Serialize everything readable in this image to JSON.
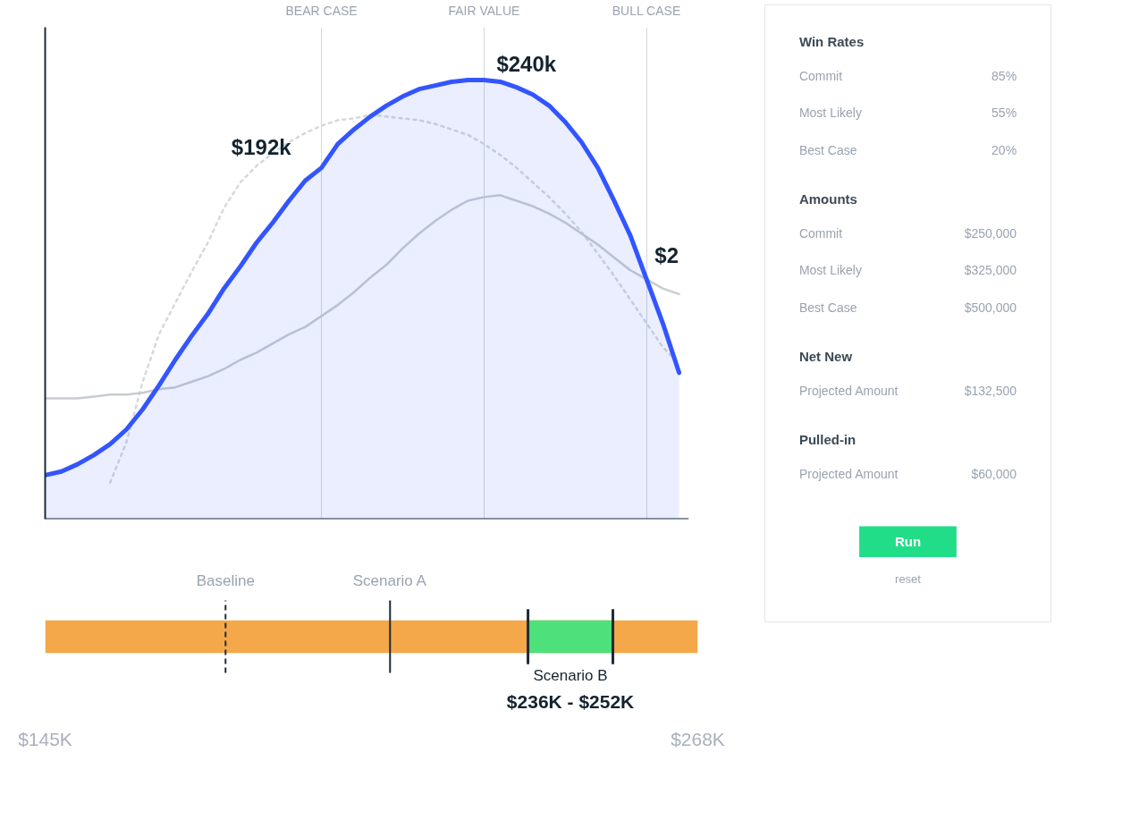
{
  "chart_data": [
    {
      "type": "line",
      "grid": "x",
      "tick_labels": "x",
      "categories": [
        null,
        null,
        null,
        null,
        null,
        null,
        null,
        null,
        null,
        null,
        null,
        null,
        null,
        null,
        null,
        null,
        null,
        "BEAR CASE",
        null,
        null,
        null,
        null,
        null,
        null,
        null,
        null,
        null,
        "FAIR VALUE",
        null,
        null,
        null,
        null,
        null,
        null,
        null,
        null,
        null,
        "BULL CASE",
        null,
        null
      ],
      "series": [
        {
          "type": "area",
          "color": "#3355ff",
          "values": [
            24,
            26,
            30,
            35,
            41,
            49,
            60,
            73,
            87,
            100,
            112,
            126,
            138,
            151,
            162,
            174,
            185,
            192,
            205,
            213,
            220,
            226,
            231,
            235,
            237,
            239,
            240,
            240,
            239,
            236,
            232,
            226,
            217,
            206,
            192,
            174,
            155,
            131,
            107,
            80
          ],
          "value_labels": [
            null,
            null,
            null,
            null,
            null,
            null,
            null,
            null,
            null,
            null,
            null,
            null,
            null,
            null,
            null,
            null,
            null,
            "$192k",
            null,
            null,
            null,
            null,
            null,
            null,
            null,
            null,
            null,
            "$240k",
            null,
            null,
            null,
            null,
            null,
            null,
            null,
            null,
            null,
            null,
            null,
            null
          ]
        },
        {
          "color": "#c8ccd2",
          "values": [
            66,
            66,
            66,
            67,
            68,
            68,
            69,
            71,
            72,
            75,
            78,
            82,
            87,
            91,
            96,
            101,
            105,
            111,
            117,
            124,
            132,
            139,
            148,
            156,
            163,
            169,
            174,
            176,
            177,
            174,
            171,
            167,
            162,
            156,
            150,
            143,
            136,
            131,
            126,
            123
          ]
        },
        {
          "color": "#d6d8dc",
          "line_style": "dotted",
          "values": [
            null,
            null,
            null,
            null,
            20,
            42,
            75,
            101,
            118,
            135,
            151,
            170,
            184,
            193,
            200,
            206,
            211,
            215,
            218,
            219,
            221,
            220,
            219,
            218,
            216,
            213,
            210,
            205,
            199,
            192,
            184,
            176,
            167,
            157,
            145,
            133,
            120,
            107,
            94,
            85
          ]
        }
      ],
      "annotations": [
        "$2"
      ]
    },
    {
      "type": "bar",
      "orientation": "horizontal",
      "categories": [
        null
      ],
      "values": [
        123
      ],
      "base": [
        145
      ],
      "color": "#f4a84a",
      "xlim": [
        145,
        268
      ],
      "xticks": [
        {
          "value": 145,
          "label": "$145K"
        },
        {
          "value": 268,
          "label": "$268K"
        }
      ],
      "ref_lines": [
        {
          "axis": "x",
          "value": 179,
          "label": "Baseline",
          "line_style": "dashed",
          "color": "#1d2b36"
        },
        {
          "axis": "x",
          "value": 210,
          "label": "Scenario A",
          "line_style": "solid",
          "color": "#1d2b36"
        },
        {
          "axis": "x",
          "value": 236,
          "line_style": "solid",
          "color": "#1d2b36"
        },
        {
          "axis": "x",
          "value": 252,
          "line_style": "solid",
          "color": "#1d2b36"
        }
      ],
      "bands": [
        {
          "axis": "x",
          "from": 236,
          "to": 252,
          "label": "Scenario B",
          "color": "#4ee07a"
        }
      ],
      "annotations": [
        "$236K - $252K"
      ]
    },
    {
      "type": "other",
      "annotations": [
        "Win Rates",
        "Commit",
        "85%",
        "Most Likely",
        "55%",
        "Best Case",
        "20%",
        "Amounts",
        "Commit",
        "$250,000",
        "Most Likely",
        "$325,000",
        "Best Case",
        "$500,000",
        "Net New",
        "Projected Amount",
        "$132,500",
        "Pulled-in",
        "Projected Amount",
        "$60,000",
        "Run",
        "reset"
      ]
    }
  ]
}
